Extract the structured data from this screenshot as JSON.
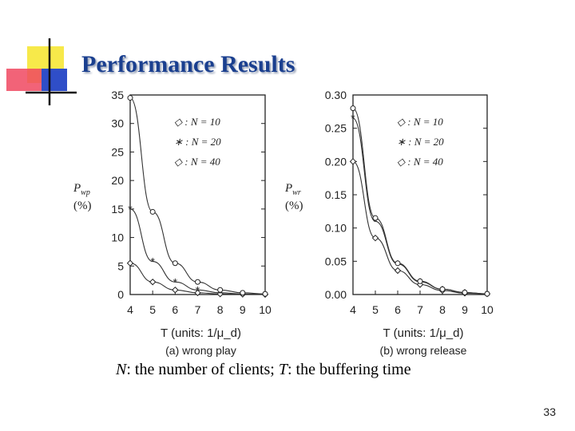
{
  "slide": {
    "title": "Performance Results",
    "caption_n": "N",
    "caption_n_text": ": the number of clients; ",
    "caption_t": "T",
    "caption_t_text": ": the buffering time",
    "page_number": "33"
  },
  "colors": {
    "title": "#1a3f8f",
    "deco_yellow": "#f7e94a",
    "deco_red": "#f04860",
    "deco_blue": "#2f4ec8"
  },
  "chart_data": [
    {
      "type": "line",
      "panel_label": "(a) wrong play",
      "ylabel": "P_wp",
      "ylabel_unit": "(%)",
      "xlabel": "T (units: 1/μ_d)",
      "x": [
        4,
        5,
        6,
        7,
        8,
        9,
        10
      ],
      "xlim": [
        4,
        10
      ],
      "ylim": [
        0,
        35
      ],
      "yticks": [
        "0",
        "5",
        "10",
        "15",
        "20",
        "25",
        "30",
        "35"
      ],
      "legend_position": "top-right",
      "series": [
        {
          "name": "N = 10",
          "marker": "diamond",
          "values": [
            5.5,
            2.2,
            0.8,
            0.3,
            0.1,
            0.05,
            0.02
          ]
        },
        {
          "name": "N = 20",
          "marker": "star",
          "values": [
            15,
            5.8,
            2.2,
            0.8,
            0.3,
            0.1,
            0.05
          ]
        },
        {
          "name": "N = 40",
          "marker": "circle",
          "values": [
            34.5,
            14.5,
            5.5,
            2.2,
            0.8,
            0.3,
            0.1
          ]
        }
      ]
    },
    {
      "type": "line",
      "panel_label": "(b) wrong release",
      "ylabel": "P_wr",
      "ylabel_unit": "(%)",
      "xlabel": "T (units: 1/μ_d)",
      "x": [
        4,
        5,
        6,
        7,
        8,
        9,
        10
      ],
      "xlim": [
        4,
        10
      ],
      "ylim": [
        0,
        0.3
      ],
      "yticks": [
        "0.00",
        "0.05",
        "0.10",
        "0.15",
        "0.20",
        "0.25",
        "0.30"
      ],
      "legend_position": "top-right",
      "series": [
        {
          "name": "N = 10",
          "marker": "diamond",
          "values": [
            0.2,
            0.085,
            0.036,
            0.015,
            0.006,
            0.002,
            0.001
          ]
        },
        {
          "name": "N = 20",
          "marker": "star",
          "values": [
            0.265,
            0.11,
            0.046,
            0.019,
            0.008,
            0.003,
            0.001
          ]
        },
        {
          "name": "N = 40",
          "marker": "circle",
          "values": [
            0.28,
            0.115,
            0.047,
            0.02,
            0.008,
            0.003,
            0.001
          ]
        }
      ]
    }
  ]
}
